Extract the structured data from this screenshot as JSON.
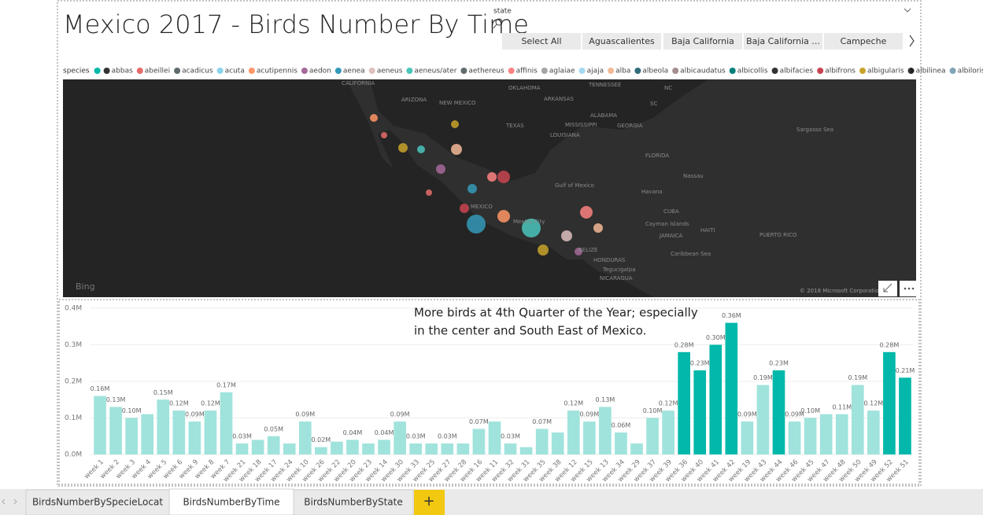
{
  "title": "Mexico 2017 - Birds Number By Time",
  "slicer": {
    "label": "state",
    "items": [
      "Select All",
      "Aguascalientes",
      "Baja California",
      "Baja California ...",
      "Campeche"
    ]
  },
  "legend": {
    "label": "species",
    "items": [
      {
        "name": "abbas",
        "color": "#333333"
      },
      {
        "name": "abeillei",
        "color": "#e66c6c"
      },
      {
        "name": "acadicus",
        "color": "#5f6b6d"
      },
      {
        "name": "acuta",
        "color": "#8ad4eb"
      },
      {
        "name": "acutipennis",
        "color": "#fe9666"
      },
      {
        "name": "aedon",
        "color": "#a66999"
      },
      {
        "name": "aenea",
        "color": "#3599b8"
      },
      {
        "name": "aeneus",
        "color": "#dfbfbf"
      },
      {
        "name": "aeneus/ater",
        "color": "#4ac5bb"
      },
      {
        "name": "aethereus",
        "color": "#5f6b6d"
      },
      {
        "name": "affinis",
        "color": "#fb8281"
      },
      {
        "name": "aglaiae",
        "color": "#a6a6a6"
      },
      {
        "name": "ajaja",
        "color": "#a5d8f3"
      },
      {
        "name": "alba",
        "color": "#f4b896"
      },
      {
        "name": "albeola",
        "color": "#326b7c"
      },
      {
        "name": "albicaudatus",
        "color": "#a68e8e"
      },
      {
        "name": "albicollis",
        "color": "#01807a"
      },
      {
        "name": "albifacies",
        "color": "#333333"
      },
      {
        "name": "albifrons",
        "color": "#c8444f"
      },
      {
        "name": "albigularis",
        "color": "#c8a32a"
      },
      {
        "name": "albilinea",
        "color": "#333333"
      },
      {
        "name": "albiloris",
        "color": "#7fa5b8"
      }
    ]
  },
  "map": {
    "labels": [
      "CALIFORNIA",
      "ARIZONA",
      "NEW MEXICO",
      "OKLAHOMA",
      "ARKANSAS",
      "TENNESSEE",
      "NC",
      "SC",
      "TEXAS",
      "MISSISSIPPI",
      "ALABAMA",
      "GEORGIA",
      "LOUISIANA",
      "FLORIDA",
      "Sargasso Sea",
      "Gulf of Mexico",
      "Havana",
      "Nassau",
      "CUBA",
      "MEXICO",
      "Mexico City",
      "Cayman Islands",
      "JAMAICA",
      "HAITI",
      "PUERTO RICO",
      "Caribbean Sea",
      "BELIZE",
      "HONDURAS",
      "Tegucigalpa",
      "NICARAGUA"
    ],
    "brand": "Bing",
    "copyright": "© 2018 Microsoft Corporation"
  },
  "chart_data": {
    "type": "bar",
    "annotation": [
      "More birds at 4th Quarter of the Year; especially",
      "in the center and South East of Mexico."
    ],
    "categories": [
      "week 1",
      "week 2",
      "week 3",
      "week 4",
      "week 5",
      "week 6",
      "week 9",
      "week 8",
      "week 7",
      "week 21",
      "week 18",
      "week 17",
      "week 24",
      "week 10",
      "week 26",
      "week 22",
      "week 20",
      "week 23",
      "week 14",
      "week 30",
      "week 33",
      "week 25",
      "week 27",
      "week 28",
      "week 16",
      "week 11",
      "week 32",
      "week 31",
      "week 35",
      "week 38",
      "week 12",
      "week 15",
      "week 13",
      "week 34",
      "week 29",
      "week 37",
      "week 39",
      "week 36",
      "week 40",
      "week 41",
      "week 42",
      "week 19",
      "week 43",
      "week 44",
      "week 46",
      "week 45",
      "week 47",
      "week 48",
      "week 50",
      "week 49",
      "week 52",
      "week 51"
    ],
    "values": [
      0.16,
      0.13,
      0.1,
      0.11,
      0.15,
      0.12,
      0.09,
      0.12,
      0.17,
      0.03,
      0.04,
      0.05,
      0.03,
      0.09,
      0.02,
      0.035,
      0.04,
      0.03,
      0.04,
      0.09,
      0.03,
      0.03,
      0.03,
      0.03,
      0.07,
      0.09,
      0.03,
      0.02,
      0.07,
      0.06,
      0.12,
      0.09,
      0.13,
      0.06,
      0.03,
      0.1,
      0.12,
      0.28,
      0.23,
      0.3,
      0.36,
      0.09,
      0.19,
      0.23,
      0.09,
      0.1,
      0.11,
      0.11,
      0.19,
      0.12,
      0.28,
      0.21
    ],
    "value_labels": [
      "0.16M",
      "0.13M",
      "0.10M",
      null,
      "0.15M",
      "0.12M",
      "0.09M",
      "0.12M",
      "0.17M",
      "0.03M",
      null,
      "0.05M",
      null,
      "0.09M",
      "0.02M",
      null,
      "0.04M",
      null,
      "0.04M",
      "0.09M",
      "0.03M",
      null,
      "0.03M",
      null,
      "0.07M",
      null,
      "0.03M",
      null,
      "0.07M",
      null,
      "0.12M",
      "0.09M",
      "0.13M",
      "0.06M",
      null,
      "0.10M",
      "0.12M",
      "0.28M",
      "0.23M",
      "0.30M",
      "0.36M",
      "0.09M",
      "0.19M",
      "0.23M",
      "0.09M",
      "0.10M",
      null,
      "0.11M",
      "0.19M",
      "0.12M",
      "0.28M",
      "0.21M"
    ],
    "colors": [
      "#9fe3dc",
      "#9fe3dc",
      "#9fe3dc",
      "#9fe3dc",
      "#9fe3dc",
      "#9fe3dc",
      "#9fe3dc",
      "#9fe3dc",
      "#9fe3dc",
      "#9fe3dc",
      "#9fe3dc",
      "#9fe3dc",
      "#9fe3dc",
      "#9fe3dc",
      "#9fe3dc",
      "#9fe3dc",
      "#9fe3dc",
      "#9fe3dc",
      "#9fe3dc",
      "#9fe3dc",
      "#9fe3dc",
      "#9fe3dc",
      "#9fe3dc",
      "#9fe3dc",
      "#9fe3dc",
      "#9fe3dc",
      "#9fe3dc",
      "#9fe3dc",
      "#9fe3dc",
      "#9fe3dc",
      "#9fe3dc",
      "#9fe3dc",
      "#9fe3dc",
      "#9fe3dc",
      "#9fe3dc",
      "#9fe3dc",
      "#9fe3dc",
      "#01b8aa",
      "#01b8aa",
      "#01b8aa",
      "#01b8aa",
      "#9fe3dc",
      "#9fe3dc",
      "#01b8aa",
      "#9fe3dc",
      "#9fe3dc",
      "#9fe3dc",
      "#9fe3dc",
      "#9fe3dc",
      "#9fe3dc",
      "#01b8aa",
      "#01b8aa"
    ],
    "ylim": [
      0,
      0.4
    ],
    "yticks": [
      {
        "value": 0,
        "label": "0.0M"
      },
      {
        "value": 0.1,
        "label": "0.1M"
      },
      {
        "value": 0.2,
        "label": "0.2M"
      },
      {
        "value": 0.3,
        "label": "0.3M"
      },
      {
        "value": 0.4,
        "label": "0.4M"
      }
    ],
    "grid": true
  },
  "tabs": {
    "items": [
      "BirdsNumberBySpecieLocat",
      "BirdsNumberByTime",
      "BirdsNumberByState"
    ],
    "add": "+"
  }
}
